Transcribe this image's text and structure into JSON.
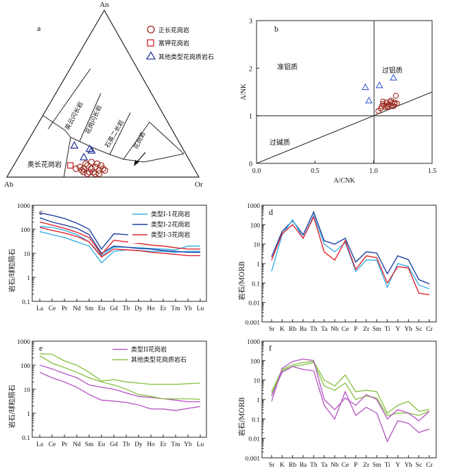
{
  "chart_data": [
    {
      "panel": "a",
      "type": "scatter",
      "diagram": "An-Ab-Or ternary",
      "vertices": {
        "top": "An",
        "left": "Ab",
        "right": "Or"
      },
      "field_labels": [
        "奥长花岗岩",
        "英云闪长岩",
        "花岗闪长岩",
        "石英二长岩",
        "花岗岩"
      ],
      "legend": [
        {
          "label": "正长花岗岩",
          "marker": "circle",
          "color": "#9b2a1f"
        },
        {
          "label": "富钾花岗岩",
          "marker": "square",
          "color": "#d81f2a"
        },
        {
          "label": "其他类型花岗质岩石",
          "marker": "triangle",
          "color": "#2b3a9a"
        }
      ],
      "series": [
        {
          "name": "正长花岗岩",
          "points": [
            [
              0.4,
              0.05
            ],
            [
              0.38,
              0.06
            ],
            [
              0.42,
              0.07
            ],
            [
              0.44,
              0.05
            ],
            [
              0.46,
              0.06
            ],
            [
              0.48,
              0.04
            ],
            [
              0.43,
              0.03
            ],
            [
              0.41,
              0.08
            ],
            [
              0.39,
              0.04
            ],
            [
              0.47,
              0.08
            ],
            [
              0.45,
              0.03
            ],
            [
              0.5,
              0.05
            ],
            [
              0.49,
              0.07
            ],
            [
              0.36,
              0.05
            ],
            [
              0.44,
              0.09
            ],
            [
              0.51,
              0.04
            ],
            [
              0.42,
              0.02
            ],
            [
              0.46,
              0.02
            ],
            [
              0.4,
              0.03
            ],
            [
              0.48,
              0.02
            ]
          ]
        },
        {
          "name": "富钾花岗岩",
          "points": [
            [
              0.33,
              0.07
            ]
          ]
        },
        {
          "name": "其他类型花岗质岩石",
          "points": [
            [
              0.35,
              0.19
            ],
            [
              0.43,
              0.17
            ],
            [
              0.44,
              0.16
            ],
            [
              0.4,
              0.12
            ]
          ]
        }
      ]
    },
    {
      "panel": "b",
      "type": "scatter",
      "xlabel": "A/CNK",
      "ylabel": "A/NK",
      "xlim": [
        0,
        1.5
      ],
      "ylim": [
        0,
        3
      ],
      "xticks": [
        "0.0",
        "0.5",
        "1.0",
        "1.5"
      ],
      "yticks": [
        "0",
        "1",
        "2",
        "3"
      ],
      "field_labels": [
        "准铝质",
        "过铝质",
        "过碱质"
      ],
      "series": [
        {
          "name": "circles",
          "marker": "circle",
          "color": "#9b2a1f",
          "x": [
            1.04,
            1.06,
            1.07,
            1.08,
            1.09,
            1.1,
            1.11,
            1.12,
            1.13,
            1.14,
            1.15,
            1.16,
            1.17,
            1.18,
            1.19,
            1.08,
            1.12,
            1.15,
            1.18,
            1.2
          ],
          "y": [
            1.1,
            1.15,
            1.2,
            1.25,
            1.22,
            1.18,
            1.28,
            1.2,
            1.24,
            1.3,
            1.22,
            1.27,
            1.2,
            1.25,
            1.42,
            1.3,
            1.18,
            1.32,
            1.28,
            1.26
          ]
        },
        {
          "name": "triangles",
          "marker": "triangle",
          "color": "#3a5bd0",
          "x": [
            0.93,
            1.17,
            0.96,
            1.05
          ],
          "y": [
            1.6,
            1.8,
            1.32,
            1.64
          ]
        }
      ]
    },
    {
      "panel": "c",
      "type": "line",
      "log_y": true,
      "ylabel": "岩石/球粒陨石",
      "yticks": [
        "1000",
        "100",
        "10",
        "1",
        "0.1"
      ],
      "categories": [
        "La",
        "Ce",
        "Pr",
        "Nd",
        "Sm",
        "Eu",
        "Gd",
        "Tb",
        "Dy",
        "Ho",
        "Er",
        "Tm",
        "Yb",
        "Lu"
      ],
      "legend": [
        "类型I-1花岗岩",
        "类型I-2花岗岩",
        "类型I-3花岗岩"
      ],
      "series": [
        {
          "name": "类型I-1花岗岩",
          "color": "#38aee8",
          "values": [
            130,
            120,
            90,
            60,
            30,
            8,
            18,
            18,
            17,
            16,
            15,
            14,
            20,
            20
          ]
        },
        {
          "name": "类型I-1花岗岩",
          "color": "#38aee8",
          "values": [
            80,
            60,
            45,
            30,
            20,
            4,
            12,
            14,
            13,
            12,
            12,
            11,
            12,
            12
          ]
        },
        {
          "name": "类型I-2花岗岩",
          "color": "#1c3fa0",
          "values": [
            480,
            380,
            280,
            180,
            100,
            15,
            65,
            60,
            55,
            52,
            48,
            40,
            36,
            35
          ]
        },
        {
          "name": "类型I-2花岗岩",
          "color": "#1c3fa0",
          "values": [
            300,
            200,
            150,
            110,
            60,
            10,
            20,
            18,
            16,
            15,
            13,
            12,
            11,
            11
          ]
        },
        {
          "name": "类型I-3花岗岩",
          "color": "#e0242c",
          "values": [
            200,
            150,
            110,
            75,
            45,
            9,
            35,
            30,
            26,
            22,
            20,
            17,
            15,
            15
          ]
        },
        {
          "name": "类型I-3花岗岩",
          "color": "#e0242c",
          "values": [
            120,
            90,
            70,
            50,
            30,
            7,
            15,
            14,
            13,
            11,
            10,
            9,
            8,
            8
          ]
        }
      ]
    },
    {
      "panel": "d",
      "type": "line",
      "log_y": true,
      "ylabel": "岩石/MORB",
      "yticks": [
        "1000",
        "100",
        "10",
        "1",
        "0.1",
        "0.01",
        "0.001"
      ],
      "categories": [
        "Sr",
        "K",
        "Rb",
        "Ba",
        "Th",
        "Ta",
        "Nb",
        "Ce",
        "P",
        "Zr",
        "Sm",
        "Ti",
        "Y",
        "Yb",
        "Sc",
        "Cr"
      ],
      "series": [
        {
          "color": "#1c3fa0",
          "values": [
            2.2,
            45,
            160,
            30,
            450,
            15,
            10,
            20,
            1.2,
            4,
            3.5,
            0.3,
            2.5,
            1.6,
            0.15,
            0.09
          ]
        },
        {
          "color": "#38aee8",
          "values": [
            0.4,
            30,
            180,
            20,
            300,
            10,
            4,
            12,
            0.4,
            1.5,
            1.5,
            0.06,
            1.0,
            0.7,
            0.08,
            0.05
          ]
        },
        {
          "color": "#e0242c",
          "values": [
            1.5,
            35,
            100,
            20,
            250,
            4,
            1.5,
            15,
            0.5,
            2.5,
            2,
            0.1,
            0.7,
            0.6,
            0.03,
            0.025
          ]
        }
      ]
    },
    {
      "panel": "e",
      "type": "line",
      "log_y": true,
      "ylabel": "岩石/球粒陨石",
      "yticks": [
        "1000",
        "100",
        "10",
        "1",
        "0.1"
      ],
      "categories": [
        "La",
        "Ce",
        "Pr",
        "Nd",
        "Sm",
        "Eu",
        "Gd",
        "Tb",
        "Dy",
        "Ho",
        "Er",
        "Tm",
        "Yb",
        "Lu"
      ],
      "legend": [
        "类型II花岗岩",
        "其他类型花岗质岩石"
      ],
      "series": [
        {
          "name": "类型II花岗岩",
          "color": "#b85bc4",
          "values": [
            100,
            70,
            45,
            30,
            15,
            12,
            10,
            7,
            5,
            4.5,
            4,
            3.5,
            3,
            3
          ]
        },
        {
          "name": "类型II花岗岩",
          "color": "#b85bc4",
          "values": [
            50,
            30,
            20,
            12,
            6,
            3.5,
            3.2,
            2.8,
            2.2,
            1.5,
            1.5,
            1.3,
            1.6,
            1.9
          ]
        },
        {
          "name": "其他类型花岗质岩石",
          "color": "#8bc34a",
          "values": [
            300,
            280,
            150,
            100,
            50,
            22,
            25,
            20,
            18,
            16,
            16,
            16,
            17,
            18
          ]
        },
        {
          "name": "其他类型花岗质岩石",
          "color": "#8bc34a",
          "values": [
            250,
            120,
            80,
            50,
            30,
            20,
            15,
            10,
            6,
            5,
            4,
            4,
            4,
            3.8
          ]
        }
      ]
    },
    {
      "panel": "f",
      "type": "line",
      "log_y": true,
      "ylabel": "岩石/MORB",
      "yticks": [
        "1000",
        "100",
        "10",
        "1",
        "0.1",
        "0.01",
        "0.001"
      ],
      "categories": [
        "Sr",
        "K",
        "Rb",
        "Ba",
        "Th",
        "Ta",
        "Nb",
        "Ce",
        "P",
        "Zr",
        "Sm",
        "Ti",
        "Y",
        "Yb",
        "Sc",
        "Cr"
      ],
      "series": [
        {
          "color": "#8bc34a",
          "values": [
            2.5,
            35,
            60,
            80,
            90,
            10,
            5,
            18,
            2.5,
            3,
            2.5,
            0.2,
            0.5,
            0.8,
            0.25,
            0.3
          ]
        },
        {
          "color": "#8bc34a",
          "values": [
            2,
            30,
            50,
            60,
            80,
            5,
            3,
            7,
            1.0,
            1.5,
            1.2,
            0.15,
            0.2,
            0.2,
            0.15,
            0.25
          ]
        },
        {
          "color": "#b85bc4",
          "values": [
            0.8,
            40,
            90,
            120,
            100,
            1.0,
            0.3,
            1.2,
            0.5,
            1.8,
            1.0,
            0.1,
            0.3,
            0.2,
            0.08,
            0.25
          ]
        },
        {
          "color": "#b85bc4",
          "values": [
            1.5,
            25,
            50,
            35,
            30,
            0.5,
            0.1,
            2.5,
            0.15,
            0.4,
            0.2,
            0.007,
            0.08,
            0.06,
            0.02,
            0.03
          ]
        }
      ]
    }
  ]
}
